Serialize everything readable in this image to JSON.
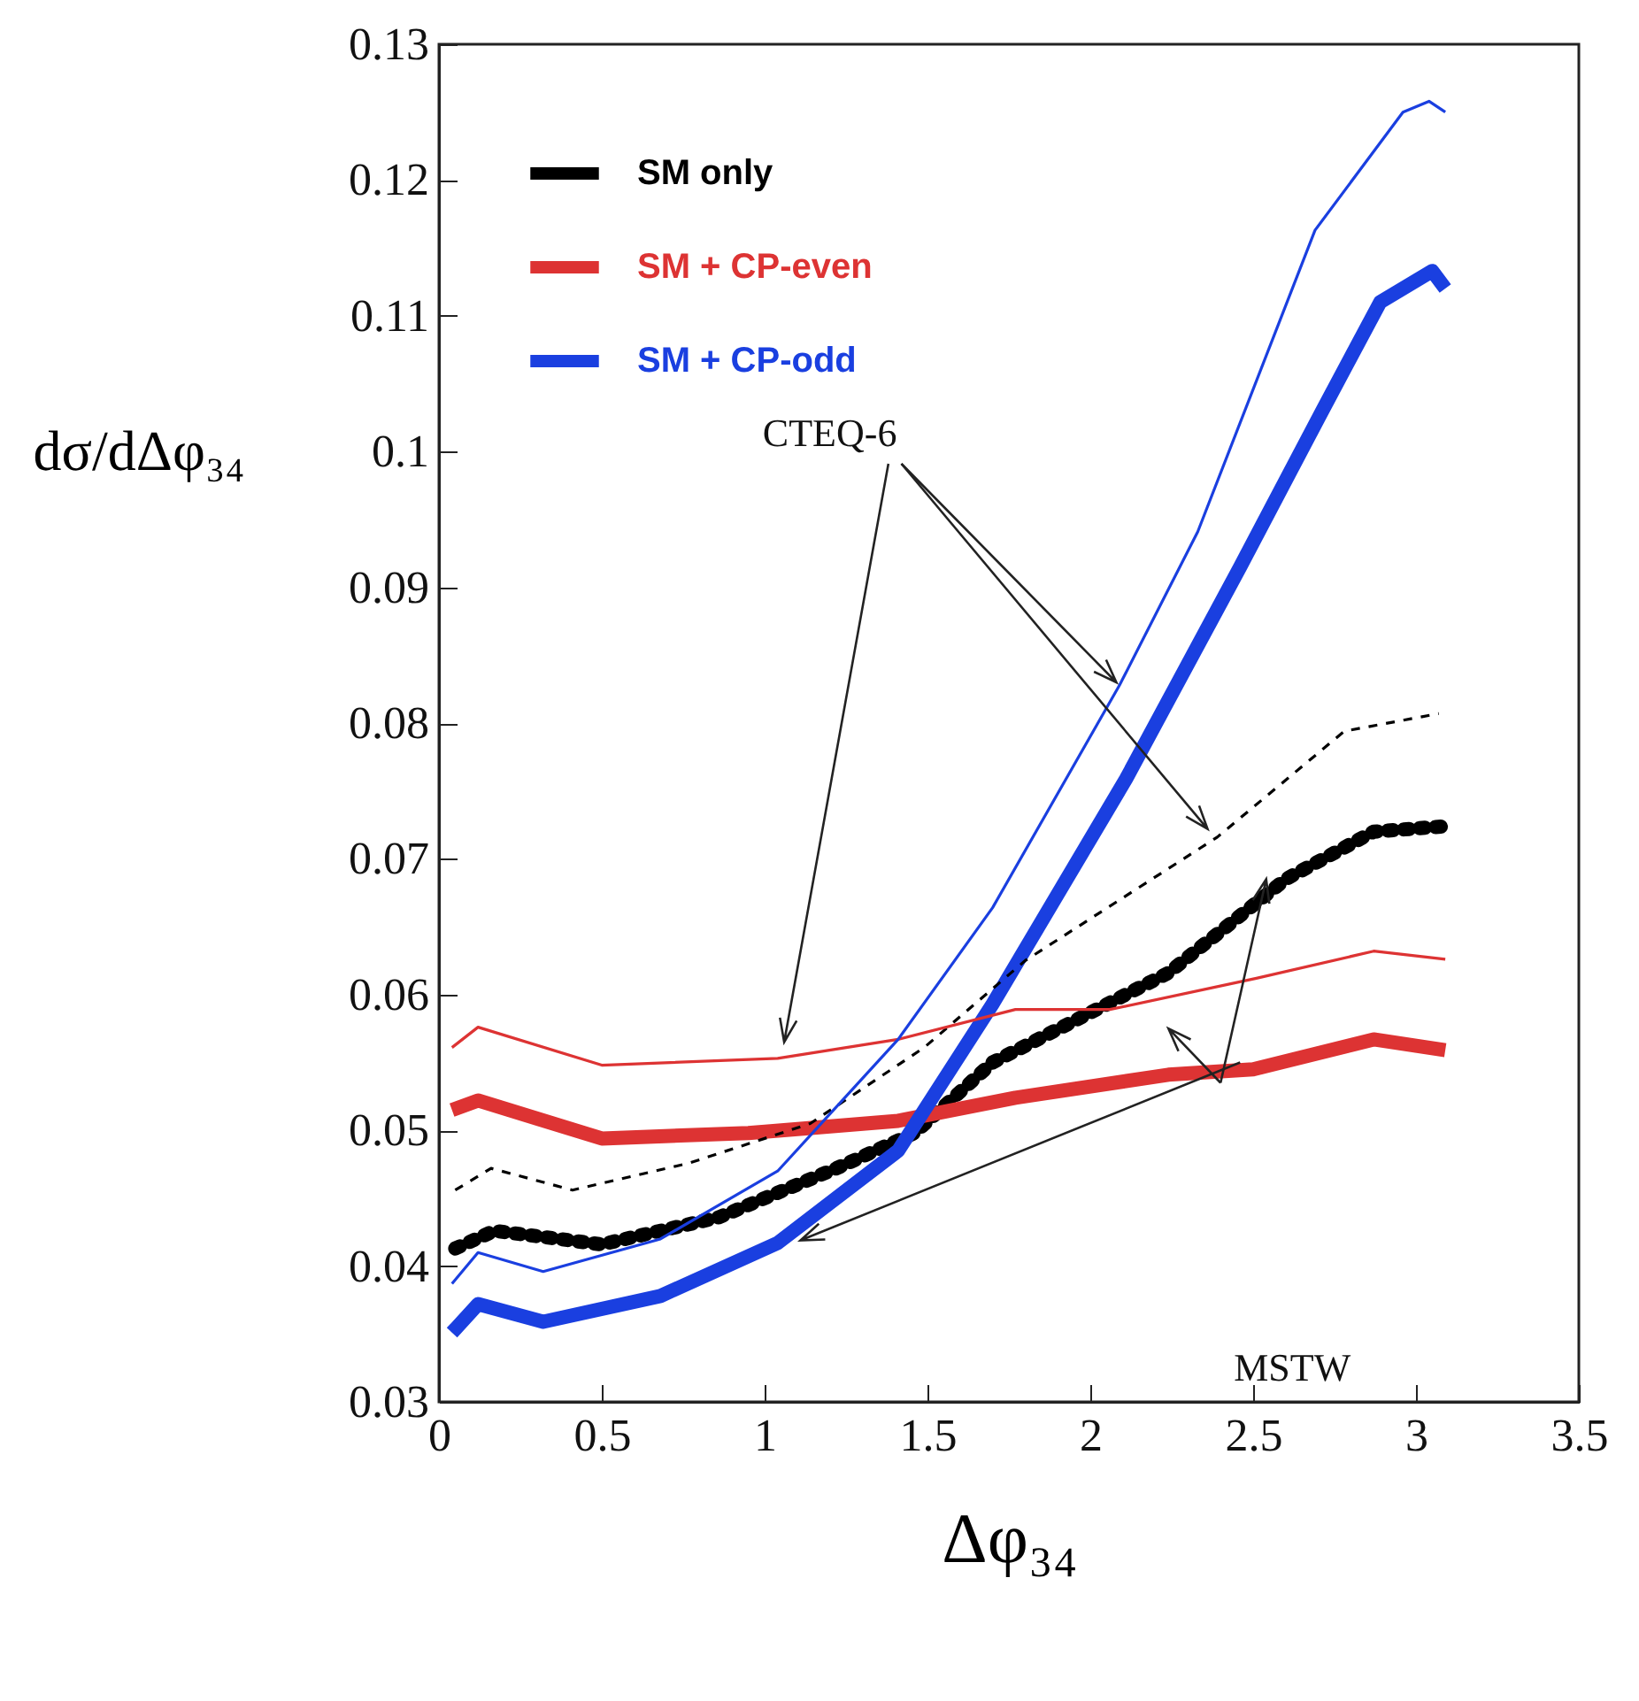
{
  "chart_data": {
    "type": "line",
    "xlabel": "Δφ₃₄",
    "ylabel": "dσ/dΔφ₃₄",
    "xlim": [
      0,
      3.5
    ],
    "xticks": [
      0,
      0.5,
      1,
      1.5,
      2,
      2.5,
      3,
      3.5
    ],
    "ylim": [
      0.03,
      0.13
    ],
    "yticks": [
      0.03,
      0.04,
      0.05,
      0.06,
      0.07,
      0.08,
      0.09,
      0.1,
      0.11,
      0.12,
      0.13
    ],
    "legend": "top left",
    "grid": false,
    "annotations": [
      {
        "text": "CTEQ-6",
        "x": 2.08,
        "y": 0.083
      },
      "MSTW"
    ],
    "series": [
      {
        "name": "SM only",
        "color": "#000000",
        "line_style": "dotted",
        "x": [
          0.05,
          0.17,
          0.5,
          0.86,
          1.22,
          1.46,
          1.7,
          2.24,
          2.6,
          2.87,
          3.09
        ],
        "values": [
          0.0413,
          0.0426,
          0.0416,
          0.0436,
          0.0472,
          0.0498,
          0.055,
          0.0616,
          0.0685,
          0.072,
          0.0724
        ]
      },
      {
        "name": "SM + CP-even",
        "color": "#dd3333",
        "line_style": "solid",
        "x": [
          0.04,
          0.12,
          0.5,
          0.95,
          1.41,
          1.77,
          2.24,
          2.5,
          2.87,
          3.09
        ],
        "values": [
          0.0515,
          0.0522,
          0.0494,
          0.0498,
          0.0507,
          0.0524,
          0.0541,
          0.0545,
          0.0567,
          0.0559
        ]
      },
      {
        "name": "SM + CP-odd",
        "color": "#1a3fe0",
        "line_style": "solid",
        "x": [
          0.04,
          0.12,
          0.32,
          0.68,
          1.04,
          1.41,
          1.7,
          2.11,
          2.46,
          2.71,
          2.89,
          3.05,
          3.09
        ],
        "values": [
          0.0351,
          0.0372,
          0.0359,
          0.0378,
          0.0417,
          0.0485,
          0.0593,
          0.0759,
          0.0915,
          0.1029,
          0.111,
          0.1133,
          0.112
        ]
      },
      {
        "color": "#000000",
        "line_style": "dashed",
        "x": [
          0.05,
          0.16,
          0.41,
          0.77,
          1.14,
          1.49,
          1.8,
          2.39,
          2.78,
          3.07
        ],
        "values": [
          0.0456,
          0.0472,
          0.0456,
          0.0476,
          0.0505,
          0.0561,
          0.0625,
          0.0716,
          0.0794,
          0.0807
        ]
      },
      {
        "color": "#dd3333",
        "line_style": "solid",
        "x": [
          0.04,
          0.12,
          0.5,
          1.04,
          1.41,
          1.77,
          2.06,
          2.51,
          2.87,
          3.09
        ],
        "values": [
          0.0561,
          0.0576,
          0.0548,
          0.0553,
          0.0567,
          0.0589,
          0.0589,
          0.0612,
          0.0632,
          0.0626
        ]
      },
      {
        "color": "#1a3fe0",
        "line_style": "solid",
        "x": [
          0.04,
          0.12,
          0.32,
          0.68,
          1.04,
          1.41,
          1.7,
          2.09,
          2.33,
          2.69,
          2.96,
          3.04,
          3.09
        ],
        "values": [
          0.0387,
          0.041,
          0.0396,
          0.042,
          0.047,
          0.0567,
          0.0664,
          0.0828,
          0.0941,
          0.1163,
          0.125,
          0.1258,
          0.125
        ]
      }
    ]
  }
}
